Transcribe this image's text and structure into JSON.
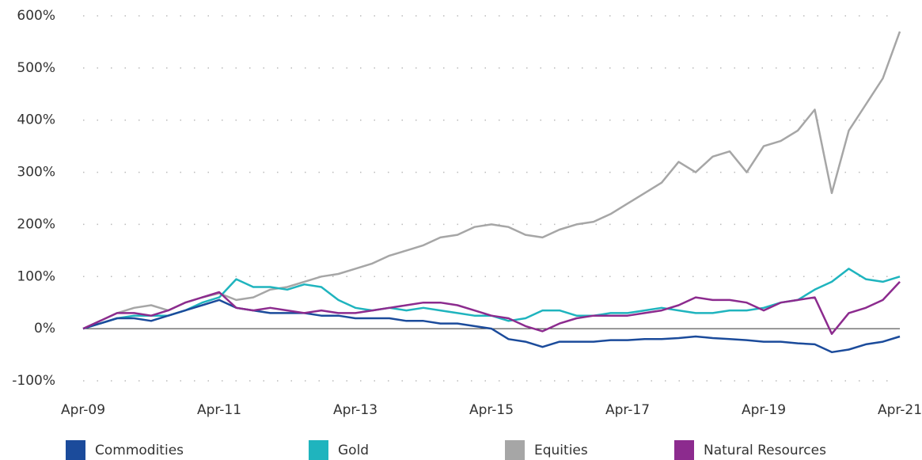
{
  "chart_data": {
    "type": "line",
    "categories": [
      "Apr-09",
      null,
      null,
      null,
      null,
      null,
      null,
      null,
      "Apr-11",
      null,
      null,
      null,
      null,
      null,
      null,
      null,
      "Apr-13",
      null,
      null,
      null,
      null,
      null,
      null,
      null,
      "Apr-15",
      null,
      null,
      null,
      null,
      null,
      null,
      null,
      "Apr-17",
      null,
      null,
      null,
      null,
      null,
      null,
      null,
      "Apr-19",
      null,
      null,
      null,
      null,
      null,
      null,
      null,
      "Apr-21"
    ],
    "series": [
      {
        "name": "Commodities",
        "color": "#1b4b9b",
        "values": [
          0,
          10,
          20,
          20,
          15,
          25,
          35,
          45,
          55,
          40,
          35,
          30,
          30,
          30,
          25,
          25,
          20,
          20,
          20,
          15,
          15,
          10,
          10,
          5,
          0,
          -20,
          -25,
          -35,
          -25,
          -25,
          -25,
          -22,
          -22,
          -20,
          -20,
          -18,
          -15,
          -18,
          -20,
          -22,
          -25,
          -25,
          -28,
          -30,
          -45,
          -40,
          -30,
          -25,
          -15
        ]
      },
      {
        "name": "Gold",
        "color": "#1fb4be",
        "values": [
          0,
          10,
          20,
          25,
          25,
          25,
          35,
          50,
          60,
          95,
          80,
          80,
          75,
          85,
          80,
          55,
          40,
          35,
          40,
          35,
          40,
          35,
          30,
          25,
          25,
          15,
          20,
          35,
          35,
          25,
          25,
          30,
          30,
          35,
          40,
          35,
          30,
          30,
          35,
          35,
          40,
          50,
          55,
          75,
          90,
          115,
          95,
          90,
          100
        ]
      },
      {
        "name": "Equities",
        "color": "#a6a6a6",
        "values": [
          0,
          15,
          30,
          40,
          45,
          35,
          50,
          60,
          68,
          55,
          60,
          75,
          80,
          90,
          100,
          105,
          115,
          125,
          140,
          150,
          160,
          175,
          180,
          195,
          200,
          195,
          180,
          175,
          190,
          200,
          205,
          220,
          240,
          260,
          280,
          320,
          300,
          330,
          340,
          300,
          350,
          360,
          380,
          420,
          260,
          380,
          430,
          480,
          570
        ]
      },
      {
        "name": "Natural Resources",
        "color": "#8c2b8e",
        "values": [
          0,
          15,
          30,
          30,
          25,
          35,
          50,
          60,
          70,
          40,
          35,
          40,
          35,
          30,
          35,
          30,
          30,
          35,
          40,
          45,
          50,
          50,
          45,
          35,
          25,
          20,
          5,
          -5,
          10,
          20,
          25,
          25,
          25,
          30,
          35,
          45,
          60,
          55,
          55,
          50,
          35,
          50,
          55,
          60,
          -10,
          30,
          40,
          55,
          90
        ]
      }
    ],
    "ylim": [
      -100,
      600
    ],
    "yticks": [
      {
        "value": -100,
        "label": "-100%"
      },
      {
        "value": 0,
        "label": "0%"
      },
      {
        "value": 100,
        "label": "100%"
      },
      {
        "value": 200,
        "label": "200%"
      },
      {
        "value": 300,
        "label": "300%"
      },
      {
        "value": 400,
        "label": "400%"
      },
      {
        "value": 500,
        "label": "500%"
      },
      {
        "value": 600,
        "label": "600%"
      }
    ],
    "grid": true
  }
}
